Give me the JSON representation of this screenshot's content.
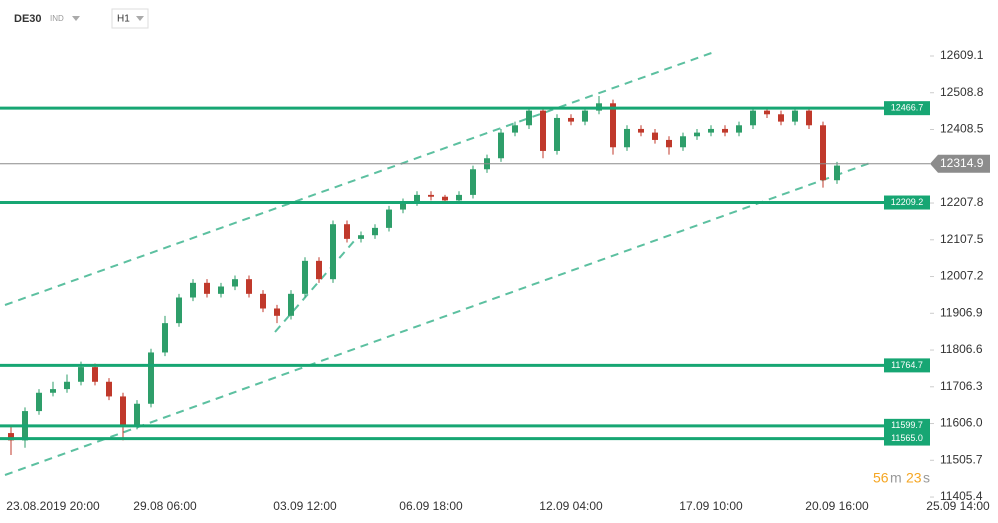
{
  "header": {
    "symbol": "DE30",
    "kind": "IND",
    "interval": "H1"
  },
  "timer": {
    "minutes": "56",
    "minutes_unit": "m",
    "seconds": "23",
    "seconds_unit": "s"
  },
  "chart_data": {
    "type": "candlestick",
    "up_color": "#2e9e6a",
    "down_color": "#c0392b",
    "level_color": "#17a673",
    "current_color": "#8c8c8c",
    "categories": [
      null,
      null,
      null,
      "23.08.2019 20:00",
      null,
      null,
      null,
      null,
      null,
      null,
      null,
      "29.08 06:00",
      null,
      null,
      null,
      null,
      null,
      null,
      null,
      null,
      null,
      "03.09 12:00",
      null,
      null,
      null,
      null,
      null,
      null,
      null,
      null,
      "06.09 18:00",
      null,
      null,
      null,
      null,
      null,
      null,
      null,
      null,
      null,
      "12.09 04:00",
      null,
      null,
      null,
      null,
      null,
      null,
      null,
      null,
      null,
      "17.09 10:00",
      null,
      null,
      null,
      null,
      null,
      null,
      null,
      null,
      "20.09 16:00"
    ],
    "x_end_label": "25.09 14:00",
    "open": [
      11580,
      11560,
      11640,
      11690,
      11700,
      11720,
      11760,
      11720,
      11680,
      11600,
      11660,
      11800,
      11880,
      11950,
      11990,
      11960,
      11980,
      12000,
      11960,
      11920,
      11900,
      11960,
      12050,
      12000,
      12150,
      12110,
      12120,
      12140,
      12190,
      12210,
      12230,
      12225,
      12215,
      12230,
      12300,
      12330,
      12400,
      12420,
      12460,
      12350,
      12440,
      12430,
      12460,
      12480,
      12360,
      12410,
      12400,
      12380,
      12360,
      12390,
      12400,
      12410,
      12400,
      12420,
      12460,
      12450,
      12430,
      12460,
      12420,
      12270
    ],
    "high": [
      11600,
      11650,
      11700,
      11720,
      11740,
      11775,
      11770,
      11730,
      11690,
      11670,
      11810,
      11900,
      11960,
      12000,
      12000,
      11990,
      12010,
      12010,
      11970,
      11930,
      11970,
      12060,
      12060,
      12160,
      12160,
      12130,
      12150,
      12200,
      12220,
      12240,
      12240,
      12230,
      12240,
      12310,
      12340,
      12410,
      12430,
      12470,
      12470,
      12450,
      12450,
      12470,
      12500,
      12490,
      12420,
      12420,
      12410,
      12390,
      12400,
      12410,
      12420,
      12420,
      12430,
      12470,
      12470,
      12460,
      12470,
      12470,
      12430,
      12320
    ],
    "low": [
      11520,
      11540,
      11630,
      11680,
      11690,
      11710,
      11710,
      11670,
      11560,
      11590,
      11650,
      11790,
      11870,
      11940,
      11950,
      11950,
      11970,
      11950,
      11910,
      11880,
      11890,
      11950,
      11990,
      11990,
      12100,
      12100,
      12110,
      12130,
      12180,
      12200,
      12215,
      12205,
      12205,
      12220,
      12290,
      12320,
      12390,
      12410,
      12330,
      12340,
      12420,
      12420,
      12450,
      12340,
      12350,
      12390,
      12370,
      12340,
      12350,
      12380,
      12390,
      12390,
      12390,
      12410,
      12440,
      12420,
      12420,
      12410,
      12250,
      12260
    ],
    "close": [
      11560,
      11640,
      11690,
      11700,
      11720,
      11760,
      11720,
      11680,
      11600,
      11660,
      11800,
      11880,
      11950,
      11990,
      11960,
      11980,
      12000,
      11960,
      11920,
      11900,
      11960,
      12050,
      12000,
      12150,
      12110,
      12120,
      12140,
      12190,
      12210,
      12230,
      12225,
      12215,
      12230,
      12300,
      12330,
      12400,
      12420,
      12460,
      12350,
      12440,
      12430,
      12460,
      12480,
      12360,
      12410,
      12400,
      12380,
      12360,
      12390,
      12400,
      12410,
      12400,
      12420,
      12460,
      12450,
      12430,
      12460,
      12420,
      12270,
      12310
    ],
    "levels": [
      12466.7,
      12209.2,
      11764.7,
      11599.7,
      {
        "value": 11565.0,
        "label": "11565.0"
      }
    ],
    "current": 12314.9,
    "ylim": [
      11402.8,
      12761.9
    ],
    "yticks": [
      12609.1,
      12508.8,
      12408.5,
      12207.8,
      12107.5,
      12007.2,
      11906.9,
      11806.6,
      11706.3,
      {
        "value": 11606.0,
        "label": "11606.0"
      },
      11505.7,
      11405.4
    ]
  }
}
